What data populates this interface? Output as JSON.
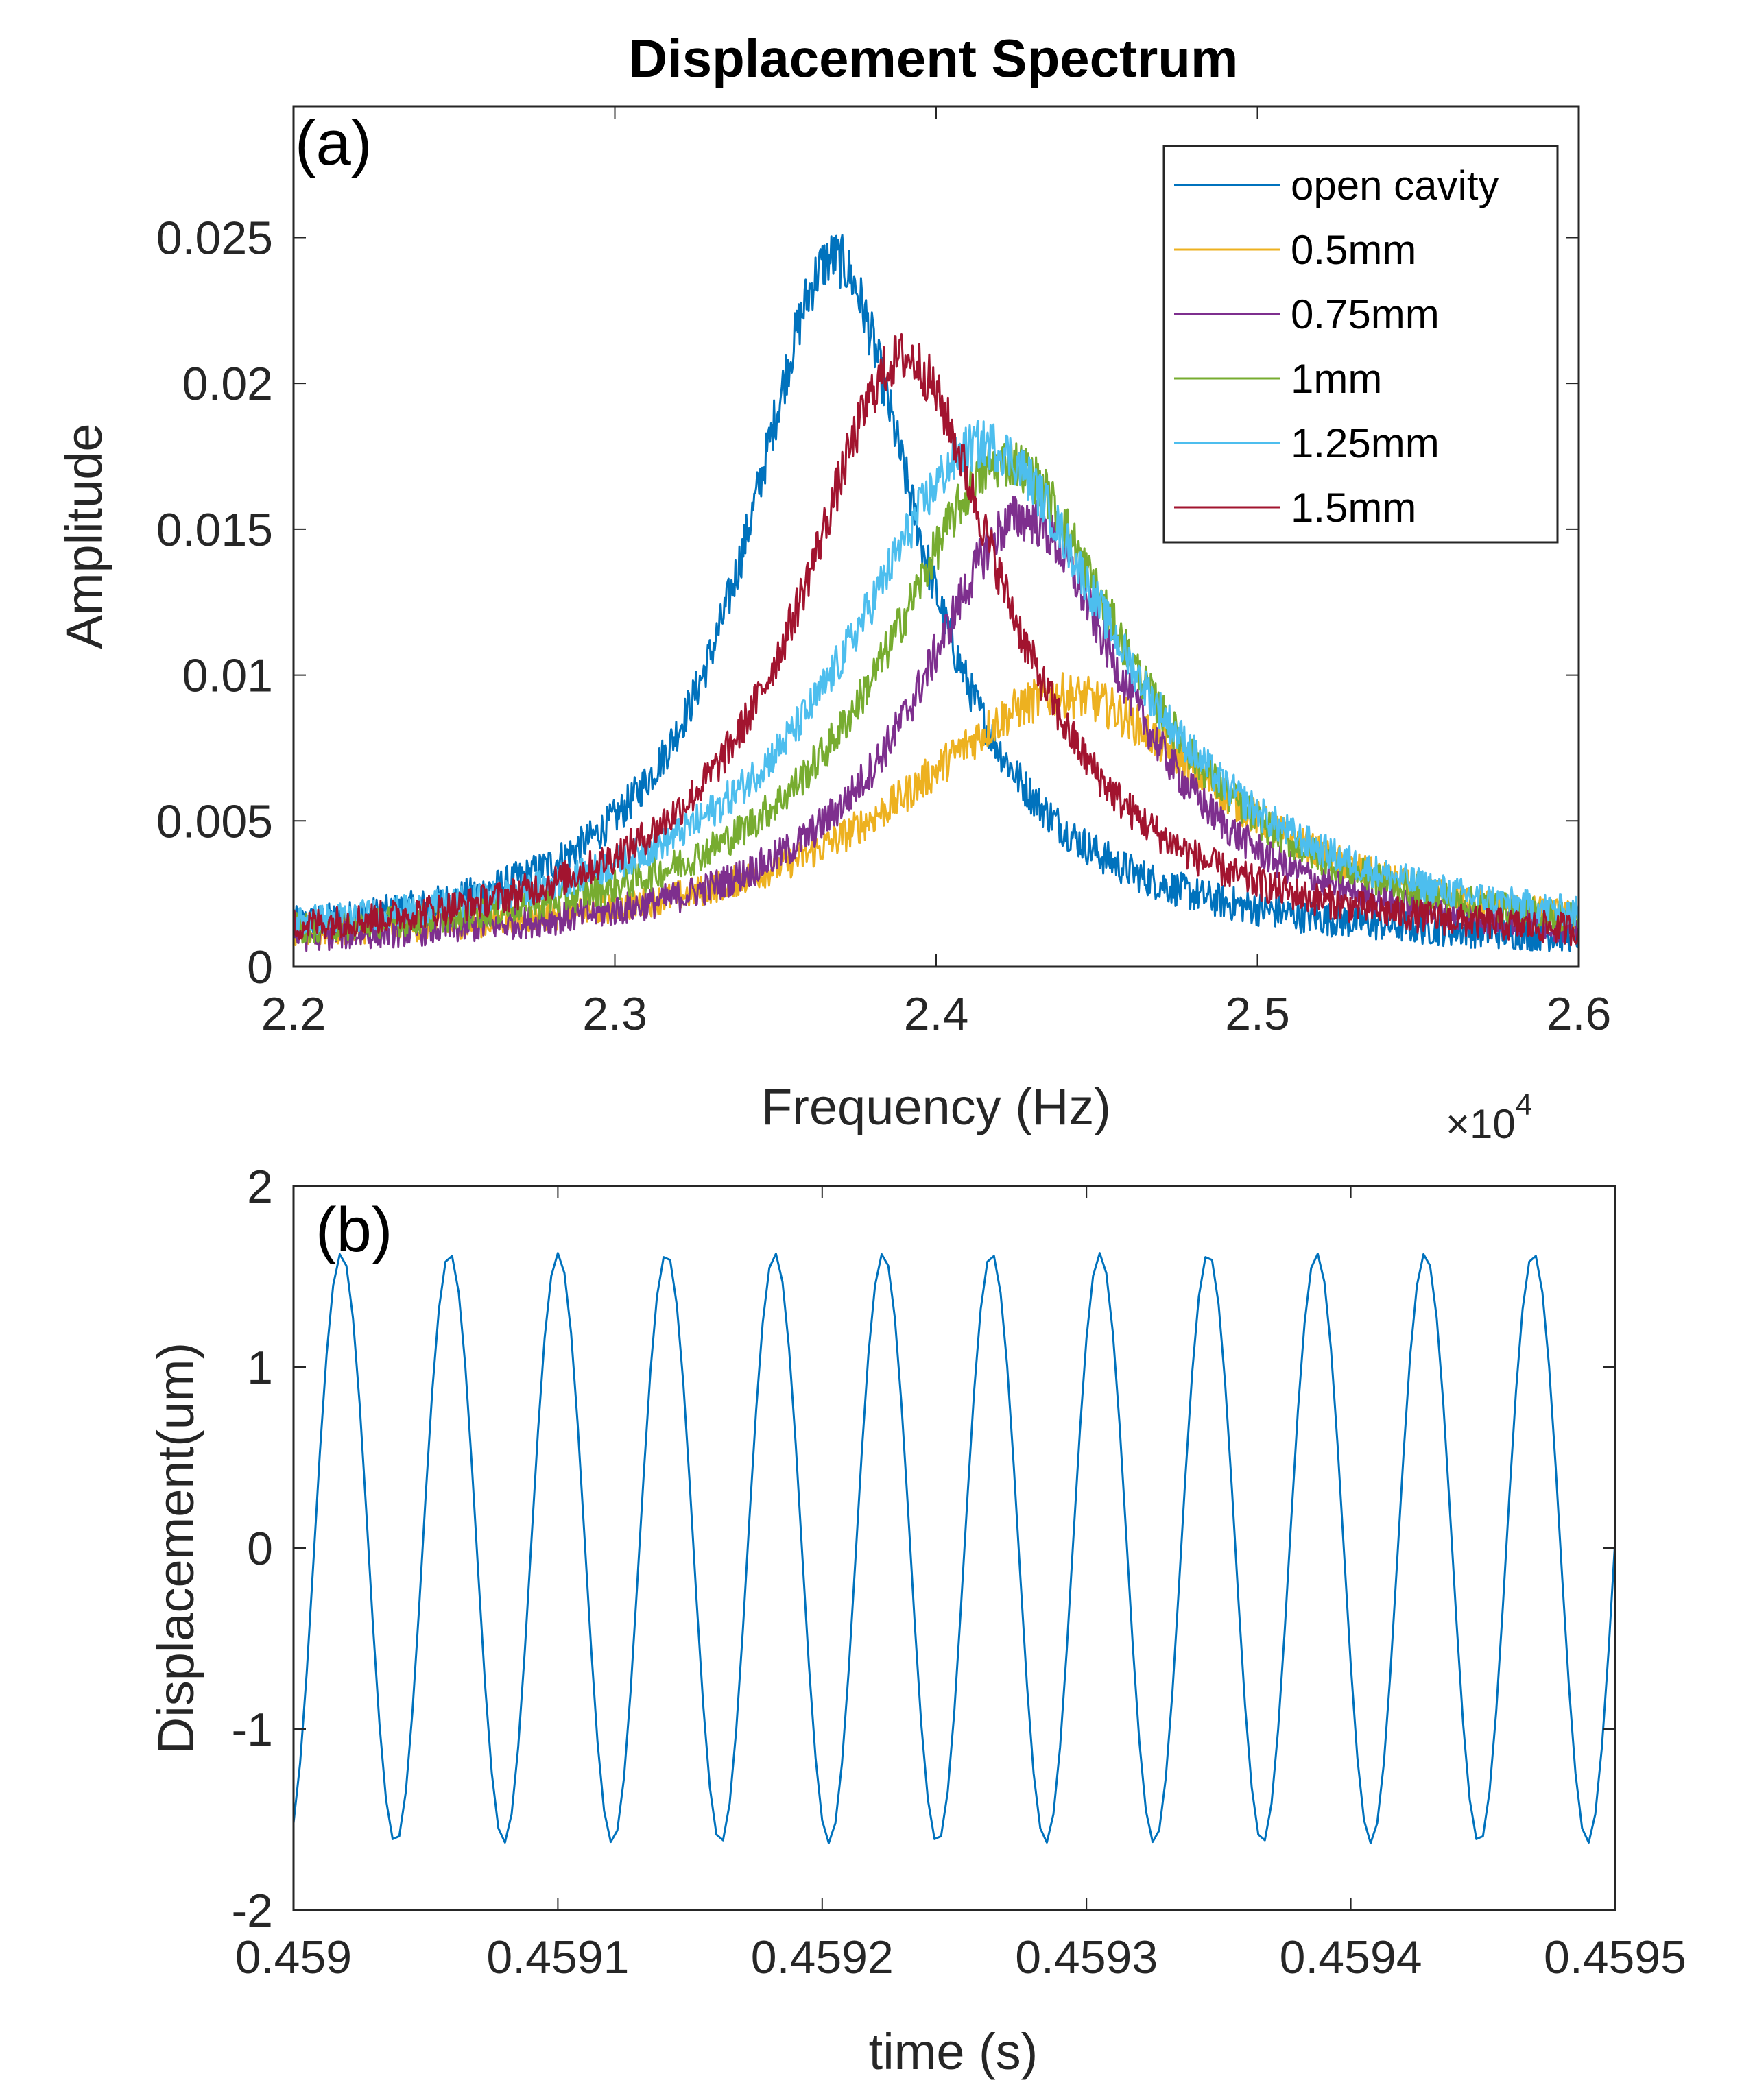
{
  "figure_title": "Displacement Spectrum",
  "chart_data": [
    {
      "type": "line",
      "panel_label": "(a)",
      "title": "Displacement Spectrum",
      "xlabel": "Frequency (Hz)",
      "ylabel": "Amplitude",
      "x_exponent_label": "×10",
      "x_exponent_power": "4",
      "xlim": [
        22000,
        26000
      ],
      "ylim": [
        0,
        0.0295
      ],
      "xticks": [
        22000,
        23000,
        24000,
        25000,
        26000
      ],
      "xtick_labels": [
        "2.2",
        "2.3",
        "2.4",
        "2.5",
        "2.6"
      ],
      "yticks": [
        0,
        0.005,
        0.01,
        0.015,
        0.02,
        0.025
      ],
      "ytick_labels": [
        "0",
        "0.005",
        "0.01",
        "0.015",
        "0.02",
        "0.025"
      ],
      "legend_position": "top-right",
      "grid": false,
      "series": [
        {
          "name": "open cavity",
          "color": "#0072BD",
          "peak_x": 23680,
          "peak_y": 0.0237,
          "hwhm": 330,
          "noise": 0.00095
        },
        {
          "name": "0.5mm",
          "color": "#EDB120",
          "peak_x": 24400,
          "peak_y": 0.0087,
          "hwhm": 620,
          "noise": 0.00075
        },
        {
          "name": "0.75mm",
          "color": "#7E2F8E",
          "peak_x": 24270,
          "peak_y": 0.0148,
          "hwhm": 400,
          "noise": 0.00085
        },
        {
          "name": "1mm",
          "color": "#77AC30",
          "peak_x": 24220,
          "peak_y": 0.0167,
          "hwhm": 470,
          "noise": 0.00085
        },
        {
          "name": "1.25mm",
          "color": "#4DBEEE",
          "peak_x": 24150,
          "peak_y": 0.0173,
          "hwhm": 520,
          "noise": 0.00085
        },
        {
          "name": "1.5mm",
          "color": "#A2142F",
          "peak_x": 23900,
          "peak_y": 0.0203,
          "hwhm": 390,
          "noise": 0.0009
        }
      ]
    },
    {
      "type": "line",
      "panel_label": "(b)",
      "xlabel": "time (s)",
      "ylabel": "Displacement(um)",
      "xlim": [
        0.459,
        0.4595
      ],
      "ylim": [
        -2,
        2
      ],
      "xticks": [
        0.459,
        0.4591,
        0.4592,
        0.4593,
        0.4594,
        0.4595
      ],
      "xtick_labels": [
        "0.459",
        "0.4591",
        "0.4592",
        "0.4593",
        "0.4594",
        "0.4595"
      ],
      "yticks": [
        -2,
        -1,
        0,
        1,
        2
      ],
      "ytick_labels": [
        "-2",
        "-1",
        "0",
        "1",
        "2"
      ],
      "grid": false,
      "series": [
        {
          "color": "#0072BD",
          "amplitude": 1.63,
          "frequency_hz": 24390,
          "phase_rad": -1.2,
          "sample_step_s": 2.5e-06
        }
      ]
    }
  ]
}
